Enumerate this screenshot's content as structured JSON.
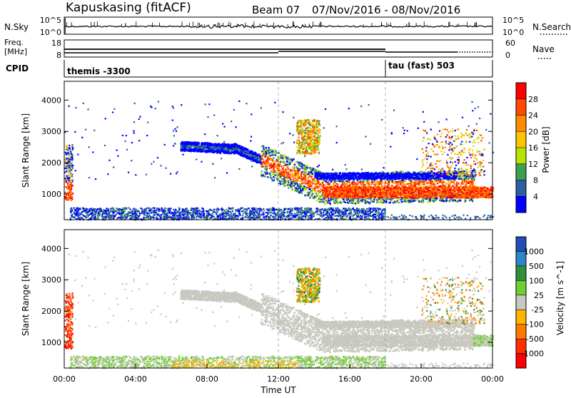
{
  "header": {
    "station": "Kapuskasing (fitACF)",
    "beam": "Beam 07",
    "date_range": "07/Nov/2016 - 08/Nov/2016"
  },
  "strip_nsky": {
    "label": "N.Sky",
    "right_label": "N.Search",
    "left_ticks": [
      "10^5",
      "10^0"
    ],
    "right_ticks": [
      "10^5",
      "10^0"
    ]
  },
  "strip_freq": {
    "label_line1": "Freq.",
    "label_line2": "[MHz]",
    "right_label": "Nave",
    "left_ticks": [
      "18",
      "8"
    ],
    "right_ticks": [
      "60",
      "0"
    ]
  },
  "strip_cpid": {
    "label": "CPID",
    "segments": [
      {
        "text": "themis -3300",
        "start_hour": 0
      },
      {
        "text": "tau (fast) 503",
        "start_hour": 18
      }
    ]
  },
  "chart_data": [
    {
      "type": "heatmap",
      "title": "Power",
      "ylabel": "Slant Range [km]",
      "xlabel": "",
      "x_range_hours": [
        0,
        24
      ],
      "ylim": [
        180,
        4600
      ],
      "y_ticks": [
        1000,
        2000,
        3000,
        4000
      ],
      "colorbar": {
        "label": "Power [dB]",
        "ticks": [
          "28",
          "24",
          "20",
          "16",
          "12",
          "8",
          "4"
        ],
        "colors": [
          "#ff0000",
          "#ff4a00",
          "#ff8c00",
          "#ffc400",
          "#b4e600",
          "#3ca050",
          "#2a5fa0",
          "#0000ff"
        ]
      },
      "series": [
        {
          "band": "ground scatter, low ranges",
          "start_hour": 0.3,
          "end_hour": 18,
          "range_low_km": 180,
          "range_high_km": 600
        },
        {
          "band": "main echo band",
          "start_hour": 8.0,
          "end_hour": 23.0,
          "range_low_km": 900,
          "range_high_km": 2700
        },
        {
          "band": "echo patch",
          "start_hour": 13.0,
          "end_hour": 14.3,
          "range_low_km": 2300,
          "range_high_km": 3400
        },
        {
          "band": "near-range patch",
          "start_hour": 0.0,
          "end_hour": 0.5,
          "range_low_km": 800,
          "range_high_km": 2600
        }
      ]
    },
    {
      "type": "heatmap",
      "title": "Velocity",
      "ylabel": "Slant Range [km]",
      "xlabel": "Time UT",
      "x_range_hours": [
        0,
        24
      ],
      "x_ticks": [
        "00:00",
        "04:00",
        "08:00",
        "12:00",
        "16:00",
        "20:00",
        "00:00"
      ],
      "ylim": [
        180,
        4600
      ],
      "y_ticks": [
        1000,
        2000,
        3000,
        4000
      ],
      "colorbar": {
        "label": "Velocity [m s^-1]",
        "ticks": [
          "1000",
          "500",
          "100",
          "25",
          "-25",
          "-100",
          "-500",
          "-1000"
        ],
        "colors": [
          "#1f4fb4",
          "#2e86c8",
          "#2f8f3a",
          "#6fd030",
          "#c8c8c0",
          "#ffb400",
          "#ff7a00",
          "#ff3000",
          "#ff0000"
        ]
      }
    }
  ]
}
